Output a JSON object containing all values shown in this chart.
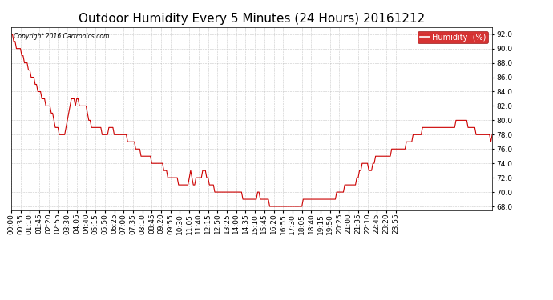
{
  "title": "Outdoor Humidity Every 5 Minutes (24 Hours) 20161212",
  "copyright_text": "Copyright 2016 Cartronics.com",
  "legend_label": "Humidity  (%)",
  "legend_bg": "#cc0000",
  "line_color": "#cc0000",
  "bg_color": "#ffffff",
  "plot_bg_color": "#ffffff",
  "grid_color": "#bbbbbb",
  "ylim": [
    67.5,
    93.0
  ],
  "yticks": [
    68.0,
    70.0,
    72.0,
    74.0,
    76.0,
    78.0,
    80.0,
    82.0,
    84.0,
    86.0,
    88.0,
    90.0,
    92.0
  ],
  "title_fontsize": 11,
  "tick_fontsize": 6.5,
  "humidity_values": [
    92,
    92,
    91,
    91,
    90,
    90,
    90,
    90,
    89,
    89,
    88,
    88,
    88,
    87,
    87,
    86,
    86,
    86,
    85,
    85,
    84,
    84,
    84,
    83,
    83,
    83,
    82,
    82,
    82,
    82,
    81,
    81,
    80,
    79,
    79,
    79,
    78,
    78,
    78,
    78,
    78,
    79,
    80,
    81,
    82,
    83,
    83,
    83,
    82,
    83,
    83,
    82,
    82,
    82,
    82,
    82,
    82,
    81,
    80,
    80,
    79,
    79,
    79,
    79,
    79,
    79,
    79,
    79,
    78,
    78,
    78,
    78,
    78,
    79,
    79,
    79,
    79,
    78,
    78,
    78,
    78,
    78,
    78,
    78,
    78,
    78,
    78,
    77,
    77,
    77,
    77,
    77,
    77,
    76,
    76,
    76,
    76,
    75,
    75,
    75,
    75,
    75,
    75,
    75,
    75,
    74,
    74,
    74,
    74,
    74,
    74,
    74,
    74,
    74,
    73,
    73,
    73,
    72,
    72,
    72,
    72,
    72,
    72,
    72,
    72,
    71,
    71,
    71,
    71,
    71,
    71,
    71,
    71,
    72,
    73,
    72,
    71,
    71,
    72,
    72,
    72,
    72,
    72,
    73,
    73,
    73,
    72,
    72,
    71,
    71,
    71,
    71,
    70,
    70,
    70,
    70,
    70,
    70,
    70,
    70,
    70,
    70,
    70,
    70,
    70,
    70,
    70,
    70,
    70,
    70,
    70,
    70,
    70,
    69,
    69,
    69,
    69,
    69,
    69,
    69,
    69,
    69,
    69,
    69,
    70,
    70,
    69,
    69,
    69,
    69,
    69,
    69,
    69,
    68,
    68,
    68,
    68,
    68,
    68,
    68,
    68,
    68,
    68,
    68,
    68,
    68,
    68,
    68,
    68,
    68,
    68,
    68,
    68,
    68,
    68,
    68,
    68,
    68,
    69,
    69,
    69,
    69,
    69,
    69,
    69,
    69,
    69,
    69,
    69,
    69,
    69,
    69,
    69,
    69,
    69,
    69,
    69,
    69,
    69,
    69,
    69,
    69,
    69,
    70,
    70,
    70,
    70,
    70,
    70,
    71,
    71,
    71,
    71,
    71,
    71,
    71,
    71,
    71,
    72,
    72,
    73,
    73,
    74,
    74,
    74,
    74,
    74,
    73,
    73,
    73,
    74,
    74,
    75,
    75,
    75,
    75,
    75,
    75,
    75,
    75,
    75,
    75,
    75,
    75,
    76,
    76,
    76,
    76,
    76,
    76,
    76,
    76,
    76,
    76,
    76,
    77,
    77,
    77,
    77,
    77,
    78,
    78,
    78,
    78,
    78,
    78,
    78,
    79,
    79,
    79,
    79,
    79,
    79,
    79,
    79,
    79,
    79,
    79,
    79,
    79,
    79,
    79,
    79,
    79,
    79,
    79,
    79,
    79,
    79,
    79,
    79,
    79,
    80,
    80,
    80,
    80,
    80,
    80,
    80,
    80,
    80,
    79,
    79,
    79,
    79,
    79,
    79,
    78,
    78,
    78,
    78,
    78,
    78,
    78,
    78,
    78,
    78,
    78,
    77,
    78
  ],
  "x_tick_labels": [
    "00:00",
    "00:35",
    "01:10",
    "01:45",
    "02:20",
    "02:55",
    "03:30",
    "04:05",
    "04:40",
    "05:15",
    "05:50",
    "06:25",
    "07:00",
    "07:35",
    "08:10",
    "08:45",
    "09:20",
    "09:55",
    "10:30",
    "11:05",
    "11:40",
    "12:15",
    "12:50",
    "13:25",
    "14:00",
    "14:35",
    "15:10",
    "15:45",
    "16:20",
    "16:55",
    "17:30",
    "18:05",
    "18:40",
    "19:15",
    "19:50",
    "20:25",
    "21:00",
    "21:35",
    "22:10",
    "22:45",
    "23:20",
    "23:55"
  ],
  "x_tick_positions": [
    0,
    7,
    14,
    21,
    28,
    35,
    42,
    49,
    56,
    63,
    70,
    77,
    84,
    91,
    98,
    105,
    112,
    119,
    126,
    133,
    140,
    147,
    154,
    161,
    168,
    175,
    182,
    189,
    196,
    203,
    210,
    217,
    224,
    231,
    238,
    245,
    252,
    259,
    266,
    273,
    280,
    287
  ]
}
